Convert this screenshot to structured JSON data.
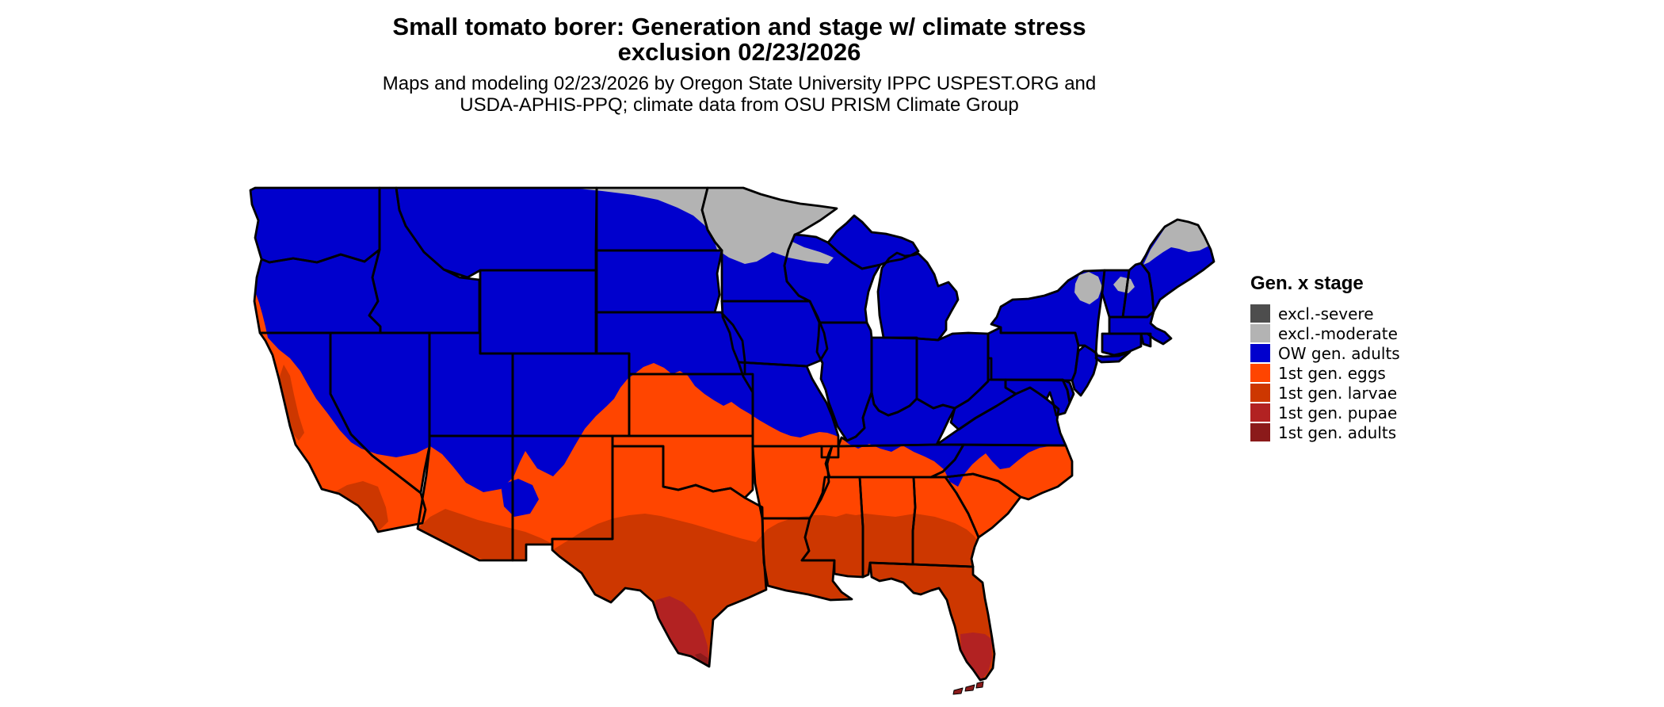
{
  "title": {
    "line1": "Small tomato borer: Generation and stage w/ climate stress",
    "line2": "exclusion 02/23/2026"
  },
  "subtitle": {
    "line1": "Maps and modeling 02/23/2026 by Oregon State University IPPC USPEST.ORG and",
    "line2": "USDA-APHIS-PPQ; climate data from OSU PRISM Climate Group"
  },
  "legend": {
    "title": "Gen. x stage",
    "items": [
      {
        "id": "excl-severe",
        "label": "excl.-severe",
        "color": "#4D4D4D"
      },
      {
        "id": "excl-moderate",
        "label": "excl.-moderate",
        "color": "#B3B3B3"
      },
      {
        "id": "ow-gen-adults",
        "label": "OW gen. adults",
        "color": "#0000CD"
      },
      {
        "id": "1st-gen-eggs",
        "label": "1st gen. eggs",
        "color": "#FF4500"
      },
      {
        "id": "1st-gen-larvae",
        "label": "1st gen. larvae",
        "color": "#CD3700"
      },
      {
        "id": "1st-gen-pupae",
        "label": "1st gen. pupae",
        "color": "#B22222"
      },
      {
        "id": "1st-gen-adults",
        "label": "1st gen. adults",
        "color": "#8B1A1A"
      }
    ]
  },
  "map": {
    "background": "#FFFFFF",
    "state_border_color": "#000000",
    "classes": {
      "excl_severe": "#4D4D4D",
      "excl_moderate": "#B3B3B3",
      "ow_gen_adults": "#0000CD",
      "first_gen_eggs": "#FF4500",
      "first_gen_larvae": "#CD3700",
      "first_gen_pupae": "#B22222",
      "first_gen_adults": "#8B1A1A"
    },
    "zones_summary": [
      {
        "class": "excl-moderate",
        "where": "northern Minnesota, northern Wisconsin, northeastern North Dakota, northern Maine, Adirondacks"
      },
      {
        "class": "OW gen. adults",
        "where": "northern and central states"
      },
      {
        "class": "1st gen. eggs",
        "where": "band across southern Plains, mid-South, Carolinas, coastal California"
      },
      {
        "class": "1st gen. larvae",
        "where": "most of Texas, Gulf Coast, Deep South, Florida, southern Arizona, California valleys"
      },
      {
        "class": "1st gen. pupae",
        "where": "south Texas, south Florida"
      },
      {
        "class": "1st gen. adults",
        "where": "lower Rio Grande tip, Florida Keys"
      }
    ]
  }
}
